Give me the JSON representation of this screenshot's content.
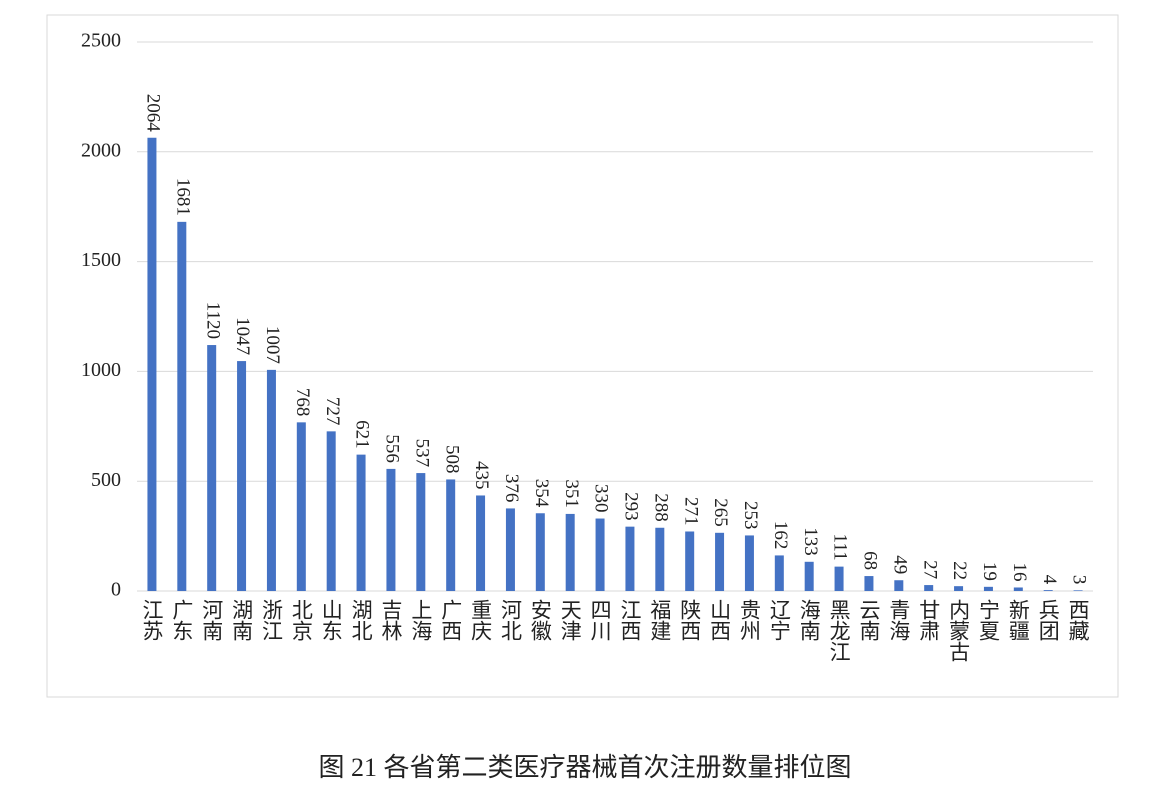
{
  "chart_data": {
    "type": "bar",
    "title": "图 21  各省第二类医疗器械首次注册数量排位图",
    "categories": [
      "江苏",
      "广东",
      "河南",
      "湖南",
      "浙江",
      "北京",
      "山东",
      "湖北",
      "吉林",
      "上海",
      "广西",
      "重庆",
      "河北",
      "安徽",
      "天津",
      "四川",
      "江西",
      "福建",
      "陕西",
      "山西",
      "贵州",
      "辽宁",
      "海南",
      "黑龙江",
      "云南",
      "青海",
      "甘肃",
      "内蒙古",
      "宁夏",
      "新疆",
      "兵团",
      "西藏"
    ],
    "values": [
      2064,
      1681,
      1120,
      1047,
      1007,
      768,
      727,
      621,
      556,
      537,
      508,
      435,
      376,
      354,
      351,
      330,
      293,
      288,
      271,
      265,
      253,
      162,
      133,
      111,
      68,
      49,
      27,
      22,
      19,
      16,
      4,
      3
    ],
    "color": "#4472c4",
    "ylim": [
      0,
      2500
    ],
    "yticks": [
      0,
      500,
      1000,
      1500,
      2000,
      2500
    ],
    "grid": true
  }
}
